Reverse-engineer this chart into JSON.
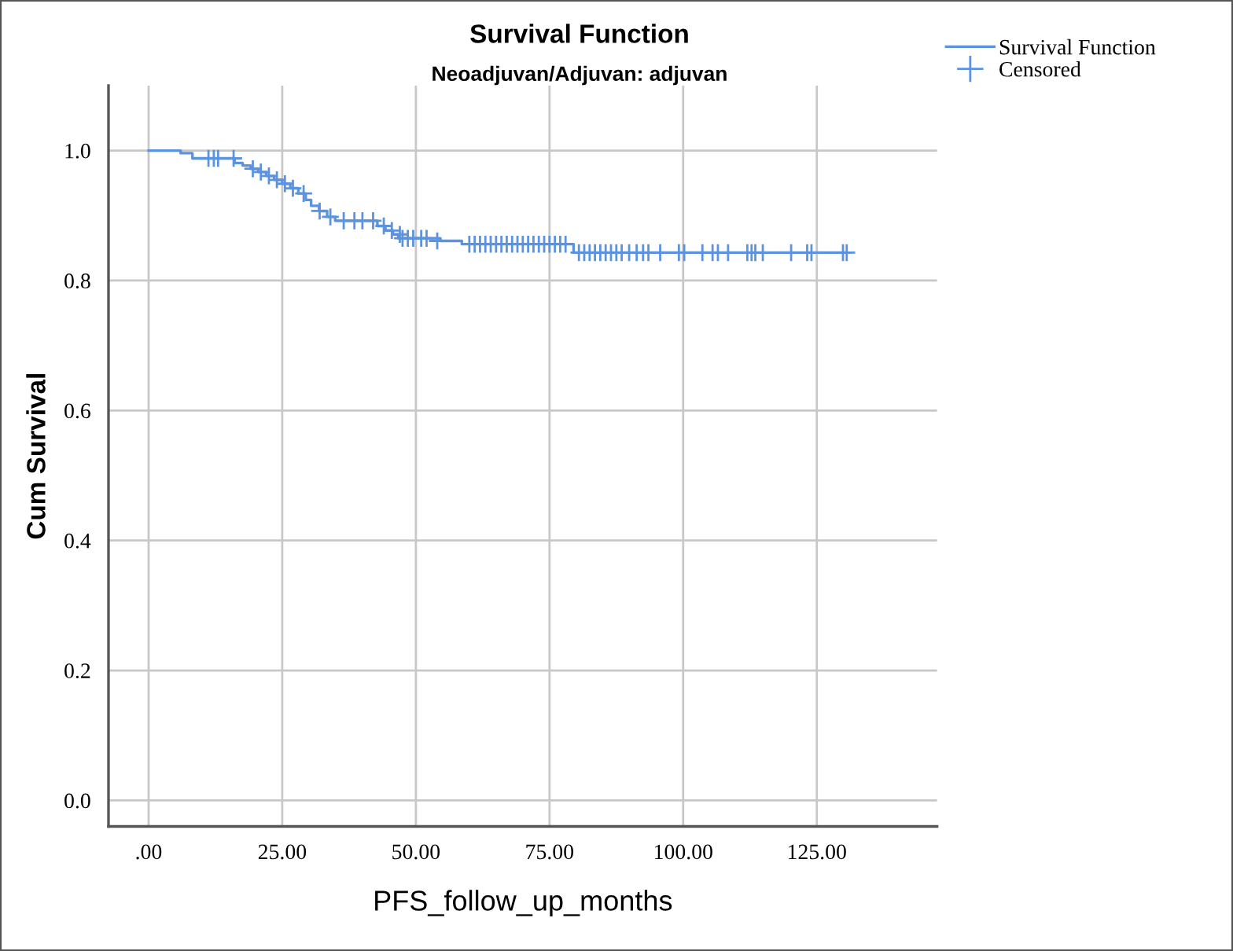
{
  "chart_data": {
    "type": "step",
    "title": "Survival Function",
    "subtitle": "Neoadjuvan/Adjuvan: adjuvan",
    "xlabel": "PFS_follow_up_months",
    "ylabel": "Cum Survival",
    "xlim": [
      -7.5,
      147.5
    ],
    "ylim": [
      -0.04,
      1.1
    ],
    "xticks": [
      {
        "value": 0,
        "label": ".00"
      },
      {
        "value": 25,
        "label": "25.00"
      },
      {
        "value": 50,
        "label": "50.00"
      },
      {
        "value": 75,
        "label": "75.00"
      },
      {
        "value": 100,
        "label": "100.00"
      },
      {
        "value": 125,
        "label": "125.00"
      }
    ],
    "yticks": [
      {
        "value": 0,
        "label": "0.0"
      },
      {
        "value": 0.2,
        "label": "0.2"
      },
      {
        "value": 0.4,
        "label": "0.4"
      },
      {
        "value": 0.6,
        "label": "0.6"
      },
      {
        "value": 0.8,
        "label": "0.8"
      },
      {
        "value": 1,
        "label": "1.0"
      }
    ],
    "grid": true,
    "legend": "top right",
    "series": [
      {
        "name": "Survival Function",
        "color": "#5b93e0",
        "marker": "none",
        "x": [
          0,
          6,
          8.2,
          16.1,
          17.6,
          19.1,
          20.5,
          22,
          23.5,
          25,
          26.5,
          28,
          29.4,
          30.4,
          31.9,
          33.4,
          34.9,
          42.8,
          44.3,
          45.7,
          46.7,
          54.6,
          58.6,
          79.5,
          130.6
        ],
        "values": [
          1,
          0.996,
          0.988,
          0.981,
          0.977,
          0.972,
          0.967,
          0.961,
          0.955,
          0.949,
          0.942,
          0.934,
          0.924,
          0.915,
          0.907,
          0.898,
          0.892,
          0.884,
          0.877,
          0.871,
          0.865,
          0.861,
          0.856,
          0.843,
          0.843
        ]
      },
      {
        "name": "Censored",
        "type": "scatter",
        "color": "#5b93e0",
        "marker": "cross",
        "x": [
          11.2,
          12.2,
          13,
          15.9,
          19.5,
          21,
          22.5,
          24,
          25.5,
          27,
          29,
          32,
          34,
          36.5,
          38.5,
          40,
          42,
          44,
          45.5,
          47,
          47.5,
          48.5,
          49.5,
          51,
          52,
          54,
          60,
          61,
          62,
          63,
          64,
          65,
          66,
          67,
          68,
          69,
          70,
          71,
          72,
          73,
          74,
          75,
          76,
          77,
          78,
          80.5,
          81.5,
          82.5,
          83.5,
          84.5,
          85.5,
          86.5,
          87.5,
          88.5,
          89.9,
          91.3,
          92.5,
          93.5,
          95.7,
          99.2,
          100.2,
          103.6,
          105.5,
          106.5,
          108.4,
          112,
          112.8,
          113.5,
          114.9,
          120.2,
          123.2,
          124,
          129.9,
          130.6
        ],
        "values": [
          0.988,
          0.988,
          0.988,
          0.988,
          0.972,
          0.967,
          0.961,
          0.955,
          0.949,
          0.942,
          0.934,
          0.907,
          0.898,
          0.892,
          0.892,
          0.892,
          0.892,
          0.884,
          0.877,
          0.871,
          0.865,
          0.865,
          0.865,
          0.865,
          0.865,
          0.861,
          0.856,
          0.856,
          0.856,
          0.856,
          0.856,
          0.856,
          0.856,
          0.856,
          0.856,
          0.856,
          0.856,
          0.856,
          0.856,
          0.856,
          0.856,
          0.856,
          0.856,
          0.856,
          0.856,
          0.843,
          0.843,
          0.843,
          0.843,
          0.843,
          0.843,
          0.843,
          0.843,
          0.843,
          0.843,
          0.843,
          0.843,
          0.843,
          0.843,
          0.843,
          0.843,
          0.843,
          0.843,
          0.843,
          0.843,
          0.843,
          0.843,
          0.843,
          0.843,
          0.843,
          0.843,
          0.843,
          0.843,
          0.843
        ]
      }
    ]
  }
}
